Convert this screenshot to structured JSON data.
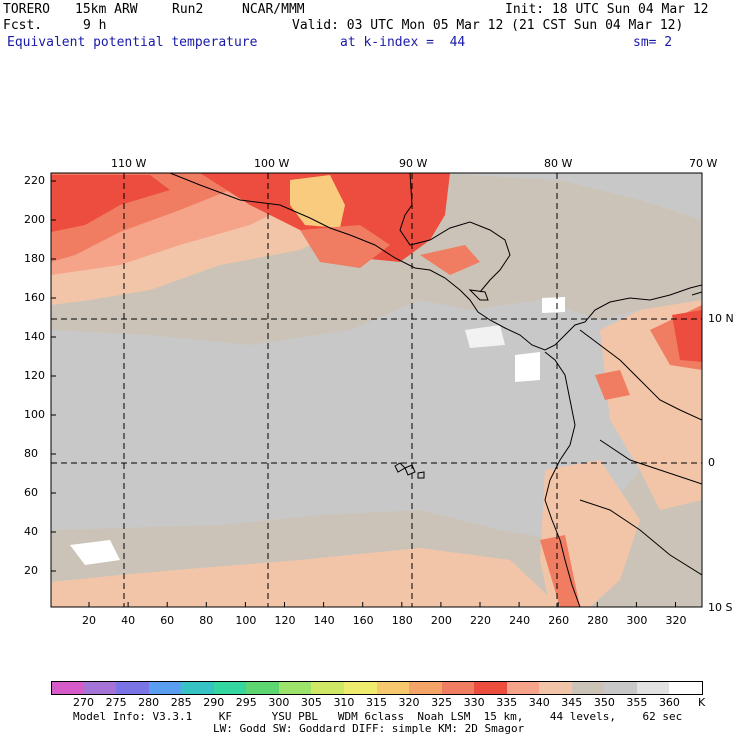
{
  "header": {
    "model": "TORERO",
    "resolution": "15km ARW",
    "run": "Run2",
    "org": "NCAR/MMM",
    "init": "Init: 18 UTC Sun 04 Mar 12",
    "fcst_label": "Fcst.",
    "fcst_value": "9 h",
    "valid": "Valid: 03 UTC Mon 05 Mar 12 (21 CST Sun 04 Mar 12)",
    "field": "Equivalent potential temperature",
    "level": "at k-index =  44",
    "smooth": "sm= 2"
  },
  "map": {
    "top_lon_labels": [
      "110 W",
      "100 W",
      "90 W",
      "80 W",
      "70 W"
    ],
    "right_lat_labels": [
      "10 N",
      "0",
      "10 S"
    ],
    "left_y_ticks": [
      "220",
      "200",
      "180",
      "160",
      "140",
      "120",
      "100",
      "80",
      "60",
      "40",
      "20"
    ],
    "bottom_x_ticks": [
      "20",
      "40",
      "60",
      "80",
      "100",
      "120",
      "140",
      "160",
      "180",
      "200",
      "220",
      "240",
      "260",
      "280",
      "300",
      "320"
    ],
    "colors": {
      "cool": "#c8c8c8",
      "mild": "#ccc3b8",
      "warm": "#f2c5a8",
      "hot": "#f07c62",
      "peach": "#f5a48a",
      "red": "#ec4d3e",
      "yellow": "#f9cb7f"
    }
  },
  "colorbar": {
    "labels": [
      "270",
      "275",
      "280",
      "285",
      "290",
      "295",
      "300",
      "305",
      "310",
      "315",
      "320",
      "325",
      "330",
      "335",
      "340",
      "345",
      "350",
      "355",
      "360"
    ],
    "unit": "K",
    "colors": [
      "#d65bc9",
      "#a474d6",
      "#7b74e6",
      "#5a9ef0",
      "#35c3c3",
      "#35d7a0",
      "#5ed773",
      "#9be36a",
      "#cfe866",
      "#f0ec70",
      "#f6c96e",
      "#f5a467",
      "#f07c62",
      "#ec4d3e",
      "#f5a48a",
      "#f2c5a8",
      "#ccc3b8",
      "#c8c8c8",
      "#e2e2e2",
      "#ffffff"
    ]
  },
  "footer": {
    "line1": "Model Info: V3.3.1    KF      YSU PBL   WDM 6class  Noah LSM  15 km,    44 levels,    62 sec",
    "line2": "LW: Godd SW: Goddard DIFF: simple KM: 2D Smagor"
  }
}
